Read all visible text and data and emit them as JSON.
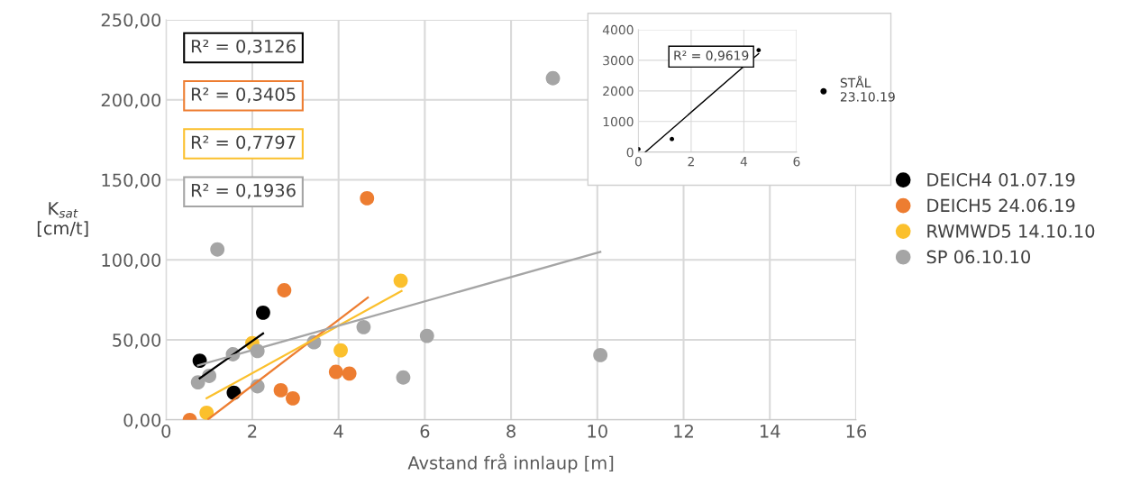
{
  "chart_data": [
    {
      "type": "scatter",
      "xlabel": "Avstand frå innlaup [m]",
      "ylabel": "K$_{sat}$\n[cm/t]",
      "xlim": [
        0,
        16
      ],
      "xticks": [
        0,
        2,
        4,
        6,
        8,
        10,
        12,
        14,
        16
      ],
      "ylim": [
        0,
        250
      ],
      "yticks": [
        {
          "value": 0,
          "label": "0,00"
        },
        {
          "value": 50,
          "label": "50,00"
        },
        {
          "value": 100,
          "label": "100,00"
        },
        {
          "value": 150,
          "label": "150,00"
        },
        {
          "value": 200,
          "label": "200,00"
        },
        {
          "value": 250,
          "label": "250,00"
        }
      ],
      "grid": true,
      "legend": "right",
      "marker": "circle",
      "annotations": [
        "R² = 0,3126",
        "R² = 0,3405",
        "R² = 0,7797",
        "R² = 0,1936"
      ],
      "series": [
        {
          "name": "DEICH4 01.07.19",
          "color": "#000000",
          "x": [
            0.78,
            2.25,
            1.57
          ],
          "values": [
            37,
            67,
            17
          ]
        },
        {
          "name": "DEICH5 24.06.19",
          "color": "#ed7d31",
          "x": [
            0.55,
            2.74,
            2.66,
            2.94,
            3.94,
            4.25,
            4.66
          ],
          "values": [
            0,
            81,
            18.5,
            13.5,
            30,
            29,
            138.5
          ]
        },
        {
          "name": "RWMWD5 14.10.10",
          "color": "#fbc02d",
          "x": [
            0.94,
            2.0,
            4.05,
            5.44
          ],
          "values": [
            4.5,
            48,
            43.5,
            87
          ]
        },
        {
          "name": "SP 06.10.10",
          "color": "#a5a5a5",
          "x": [
            0.74,
            1.0,
            1.19,
            1.55,
            2.12,
            2.12,
            3.43,
            4.58,
            5.5,
            6.05,
            8.97,
            10.07
          ],
          "values": [
            23.5,
            27.5,
            106.5,
            41,
            43,
            21,
            48.5,
            58,
            26.5,
            52.5,
            213.5,
            40.5
          ]
        },
        {
          "type": "line",
          "marker": "none",
          "color": "#000000",
          "x": [
            0.78,
            2.25
          ],
          "values": [
            26,
            54
          ]
        },
        {
          "type": "line",
          "marker": "none",
          "color": "#ed7d31",
          "x": [
            0.98,
            4.68
          ],
          "values": [
            0.5,
            76.5
          ]
        },
        {
          "type": "line",
          "marker": "none",
          "color": "#fbc02d",
          "x": [
            0.94,
            5.46
          ],
          "values": [
            13.5,
            80.5
          ]
        },
        {
          "type": "line",
          "marker": "none",
          "color": "#a5a5a5",
          "x": [
            0.74,
            10.07
          ],
          "values": [
            34,
            105
          ]
        }
      ]
    },
    {
      "type": "scatter",
      "xlim": [
        0,
        6
      ],
      "xticks": [
        0,
        2,
        4,
        6
      ],
      "ylim": [
        0,
        4000
      ],
      "yticks": [
        0,
        1000,
        2000,
        3000,
        4000
      ],
      "grid": true,
      "legend": "right",
      "marker": "circle",
      "annotations": [
        "R² = 0,9619"
      ],
      "series": [
        {
          "name": "STÅL\n23.10.19",
          "color": "#000000",
          "x": [
            0.0,
            1.27,
            4.56
          ],
          "values": [
            100,
            430,
            3330
          ]
        },
        {
          "type": "line",
          "marker": "none",
          "color": "#000000",
          "x": [
            0.26,
            4.56
          ],
          "values": [
            0,
            3220
          ]
        }
      ]
    }
  ]
}
